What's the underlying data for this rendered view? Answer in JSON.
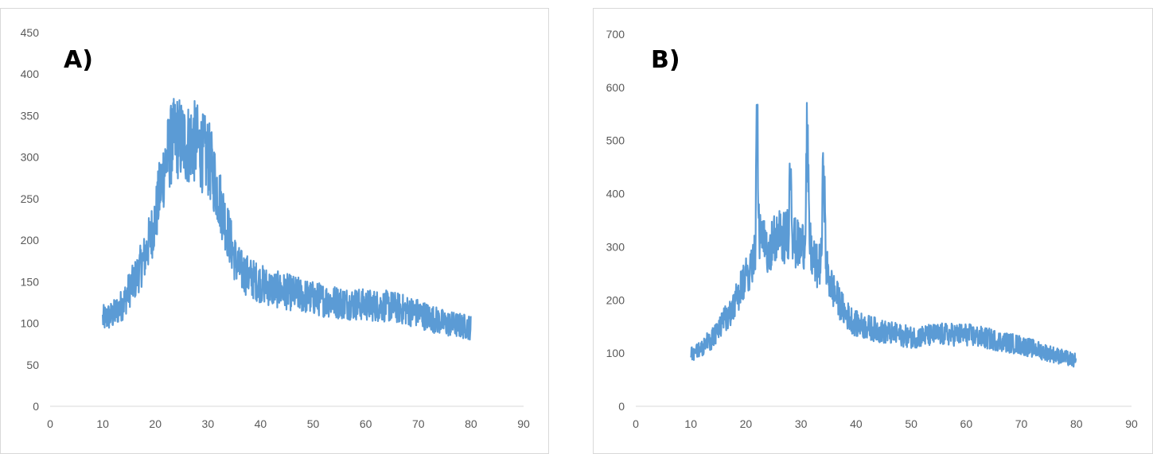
{
  "colors": {
    "series": "#5b9bd5",
    "axis": "#d9d9d9",
    "tick_text": "#595959"
  },
  "chart_data": [
    {
      "type": "line",
      "panel_label": "A)",
      "title": "",
      "xlabel": "",
      "ylabel": "",
      "xlim": [
        0,
        90
      ],
      "ylim": [
        0,
        450
      ],
      "x_ticks": [
        0,
        10,
        20,
        30,
        40,
        50,
        60,
        70,
        80,
        90
      ],
      "y_ticks": [
        0,
        50,
        100,
        150,
        200,
        250,
        300,
        350,
        400,
        450
      ],
      "grid": false,
      "legend": "none",
      "series": [
        {
          "x": [
            10,
            12,
            14,
            15,
            16,
            18,
            20,
            21,
            22,
            23,
            24,
            25,
            26,
            27,
            28,
            29,
            30,
            31,
            32,
            33,
            34,
            35,
            36,
            38,
            40,
            42,
            45,
            50,
            55,
            60,
            65,
            70,
            75,
            80
          ],
          "values": [
            105,
            110,
            125,
            140,
            150,
            180,
            225,
            265,
            295,
            315,
            325,
            320,
            315,
            320,
            315,
            305,
            300,
            280,
            255,
            230,
            205,
            180,
            165,
            155,
            148,
            142,
            138,
            130,
            125,
            122,
            120,
            112,
            100,
            95
          ]
        }
      ]
    },
    {
      "type": "line",
      "panel_label": "B)",
      "title": "",
      "xlabel": "",
      "ylabel": "",
      "xlim": [
        0,
        90
      ],
      "ylim": [
        0,
        700
      ],
      "x_ticks": [
        0,
        10,
        20,
        30,
        40,
        50,
        60,
        70,
        80,
        90
      ],
      "y_ticks": [
        0,
        100,
        200,
        300,
        400,
        500,
        600,
        700
      ],
      "grid": false,
      "legend": "none",
      "series": [
        {
          "x": [
            10,
            12,
            14,
            16,
            18,
            20,
            21,
            21.7,
            22,
            22.3,
            23,
            24,
            25,
            26,
            27,
            27.7,
            28.1,
            28.5,
            29,
            30,
            30.7,
            31.1,
            31.5,
            32,
            33,
            33.7,
            34.1,
            34.5,
            35,
            36,
            37,
            38,
            40,
            45,
            50,
            55,
            60,
            65,
            70,
            75,
            80
          ],
          "values": [
            100,
            110,
            130,
            160,
            195,
            240,
            270,
            300,
            610,
            330,
            305,
            300,
            310,
            320,
            315,
            330,
            475,
            320,
            305,
            300,
            310,
            535,
            315,
            280,
            260,
            275,
            490,
            270,
            240,
            215,
            195,
            175,
            155,
            140,
            130,
            135,
            135,
            125,
            115,
            100,
            85
          ]
        }
      ]
    }
  ]
}
